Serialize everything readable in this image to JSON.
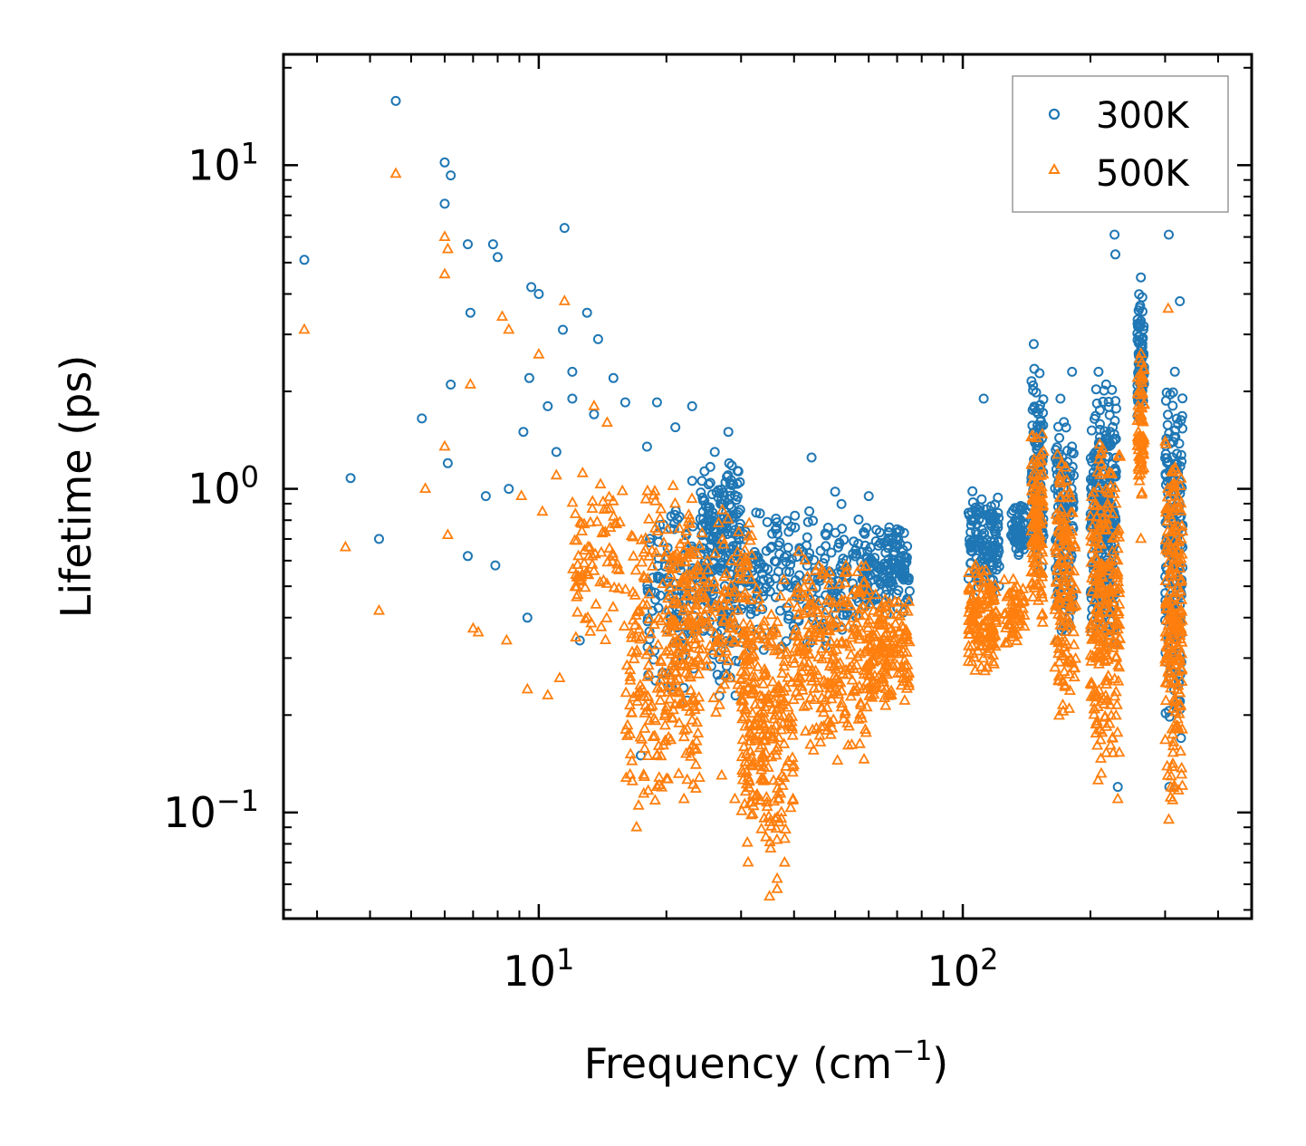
{
  "chart_data": {
    "type": "scatter",
    "title": "",
    "xlabel": "Frequency (cm",
    "xlabel_sup": "−1",
    "xlabel_end": ")",
    "ylabel": "Lifetime (ps)",
    "x_scale": "log",
    "y_scale": "log",
    "xlim": [
      2.5,
      480
    ],
    "ylim": [
      0.047,
      22
    ],
    "x_major_ticks": [
      {
        "value": 10,
        "base": "10",
        "exp": "1"
      },
      {
        "value": 100,
        "base": "10",
        "exp": "2"
      }
    ],
    "y_major_ticks": [
      {
        "value": 0.1,
        "base": "10",
        "exp": "−1"
      },
      {
        "value": 1,
        "base": "10",
        "exp": "0"
      },
      {
        "value": 10,
        "base": "10",
        "exp": "1"
      }
    ],
    "legend_position": "top-right",
    "colors": {
      "axis": "#000000",
      "legend_border": "#999999"
    },
    "series": [
      {
        "name": "300K",
        "marker": "circle",
        "color": "#1f77b4",
        "points": [
          [
            2.8,
            5.1
          ],
          [
            4.6,
            15.8
          ],
          [
            6.0,
            10.2
          ],
          [
            6.0,
            7.6
          ],
          [
            6.2,
            9.3
          ],
          [
            6.8,
            5.7
          ],
          [
            7.8,
            5.7
          ],
          [
            8.0,
            5.2
          ],
          [
            6.9,
            3.5
          ],
          [
            9.6,
            4.2
          ],
          [
            10.0,
            4.0
          ],
          [
            11.5,
            6.4
          ],
          [
            13.0,
            3.5
          ],
          [
            11.4,
            3.1
          ],
          [
            9.5,
            2.2
          ],
          [
            12.0,
            2.3
          ],
          [
            13.8,
            2.9
          ],
          [
            15.0,
            2.2
          ],
          [
            6.2,
            2.1
          ],
          [
            3.6,
            1.08
          ],
          [
            4.2,
            0.7
          ],
          [
            5.3,
            1.65
          ],
          [
            6.1,
            1.2
          ],
          [
            7.5,
            0.95
          ],
          [
            8.5,
            1.0
          ],
          [
            9.2,
            1.5
          ],
          [
            10.5,
            1.8
          ],
          [
            11.0,
            1.3
          ],
          [
            12.0,
            1.9
          ],
          [
            13.5,
            1.7
          ],
          [
            16.0,
            1.85
          ],
          [
            18.0,
            1.35
          ],
          [
            19.0,
            1.85
          ],
          [
            21.0,
            1.55
          ],
          [
            23.0,
            1.8
          ],
          [
            6.8,
            0.62
          ],
          [
            7.9,
            0.58
          ],
          [
            9.4,
            0.4
          ],
          [
            12.5,
            0.34
          ],
          [
            17.4,
            0.15
          ],
          [
            26.0,
            1.3
          ],
          [
            28.0,
            1.5
          ],
          [
            44.0,
            1.25
          ],
          [
            50.0,
            0.98
          ],
          [
            60.0,
            0.95
          ],
          [
            70.0,
            0.75
          ],
          [
            112.0,
            1.9
          ],
          [
            147.0,
            2.8
          ],
          [
            170.0,
            1.9
          ],
          [
            181.0,
            2.3
          ],
          [
            209.0,
            2.3
          ],
          [
            228.0,
            6.1
          ],
          [
            229.0,
            5.3
          ],
          [
            263.0,
            4.5
          ],
          [
            263.0,
            3.3
          ],
          [
            306.0,
            6.1
          ],
          [
            325.0,
            3.8
          ],
          [
            232.0,
            0.12
          ],
          [
            307.0,
            0.12
          ]
        ],
        "clusters": [
          {
            "x": [
              18,
              30
            ],
            "y": [
              0.2,
              1.1
            ],
            "n": 220
          },
          {
            "x": [
              24,
              30
            ],
            "y": [
              0.5,
              1.3
            ],
            "n": 120
          },
          {
            "x": [
              30,
              58
            ],
            "y": [
              0.3,
              0.95
            ],
            "n": 220
          },
          {
            "x": [
              58,
              75
            ],
            "y": [
              0.4,
              0.8
            ],
            "n": 150
          },
          {
            "x": [
              103,
              122
            ],
            "y": [
              0.45,
              1.0
            ],
            "n": 140
          },
          {
            "x": [
              130,
              140
            ],
            "y": [
              0.6,
              0.9
            ],
            "n": 60
          },
          {
            "x": [
              145,
              155
            ],
            "y": [
              0.5,
              2.6
            ],
            "n": 120
          },
          {
            "x": [
              165,
              183
            ],
            "y": [
              0.3,
              1.8
            ],
            "n": 130
          },
          {
            "x": [
              200,
              230
            ],
            "y": [
              0.3,
              2.3
            ],
            "n": 260
          },
          {
            "x": [
              258,
              268
            ],
            "y": [
              1.5,
              4.3
            ],
            "n": 80
          },
          {
            "x": [
              300,
              330
            ],
            "y": [
              0.15,
              2.7
            ],
            "n": 200
          }
        ]
      },
      {
        "name": "500K",
        "marker": "triangle",
        "color": "#ff7f0e",
        "points": [
          [
            2.8,
            3.1
          ],
          [
            4.6,
            9.4
          ],
          [
            6.0,
            6.0
          ],
          [
            6.1,
            5.5
          ],
          [
            6.0,
            4.6
          ],
          [
            6.9,
            2.1
          ],
          [
            8.2,
            3.4
          ],
          [
            8.5,
            3.1
          ],
          [
            10.0,
            2.6
          ],
          [
            11.5,
            3.8
          ],
          [
            13.5,
            1.8
          ],
          [
            14.5,
            1.6
          ],
          [
            3.5,
            0.66
          ],
          [
            4.2,
            0.42
          ],
          [
            5.4,
            1.0
          ],
          [
            6.0,
            1.35
          ],
          [
            6.1,
            0.72
          ],
          [
            7.0,
            0.37
          ],
          [
            7.2,
            0.36
          ],
          [
            8.4,
            0.34
          ],
          [
            9.4,
            0.24
          ],
          [
            10.5,
            0.23
          ],
          [
            11.2,
            0.26
          ],
          [
            9.1,
            0.95
          ],
          [
            10.2,
            0.85
          ],
          [
            11.0,
            1.1
          ],
          [
            17.0,
            0.09
          ],
          [
            17.2,
            0.105
          ],
          [
            19.0,
            0.12
          ],
          [
            22.0,
            0.11
          ],
          [
            27.0,
            0.13
          ],
          [
            29.0,
            0.11
          ],
          [
            35.0,
            0.055
          ],
          [
            36.5,
            0.058
          ],
          [
            38.0,
            0.07
          ],
          [
            232.0,
            0.11
          ],
          [
            306.0,
            0.095
          ],
          [
            263.0,
            0.7
          ],
          [
            305.0,
            3.6
          ]
        ],
        "clusters": [
          {
            "x": [
              12,
              23
            ],
            "y": [
              0.3,
              1.2
            ],
            "n": 160
          },
          {
            "x": [
              16,
              24
            ],
            "y": [
              0.1,
              0.45
            ],
            "n": 160
          },
          {
            "x": [
              20,
              32
            ],
            "y": [
              0.2,
              0.9
            ],
            "n": 220
          },
          {
            "x": [
              30,
              40
            ],
            "y": [
              0.06,
              0.55
            ],
            "n": 260
          },
          {
            "x": [
              40,
              60
            ],
            "y": [
              0.14,
              0.65
            ],
            "n": 260
          },
          {
            "x": [
              60,
              75
            ],
            "y": [
              0.2,
              0.5
            ],
            "n": 160
          },
          {
            "x": [
              103,
              120
            ],
            "y": [
              0.26,
              0.6
            ],
            "n": 140
          },
          {
            "x": [
              125,
              140
            ],
            "y": [
              0.3,
              0.55
            ],
            "n": 60
          },
          {
            "x": [
              145,
              155
            ],
            "y": [
              0.35,
              1.7
            ],
            "n": 120
          },
          {
            "x": [
              165,
              185
            ],
            "y": [
              0.16,
              1.5
            ],
            "n": 150
          },
          {
            "x": [
              200,
              235
            ],
            "y": [
              0.11,
              1.6
            ],
            "n": 260
          },
          {
            "x": [
              258,
              268
            ],
            "y": [
              0.85,
              3.0
            ],
            "n": 80
          },
          {
            "x": [
              300,
              330
            ],
            "y": [
              0.1,
              1.7
            ],
            "n": 220
          }
        ]
      }
    ]
  }
}
